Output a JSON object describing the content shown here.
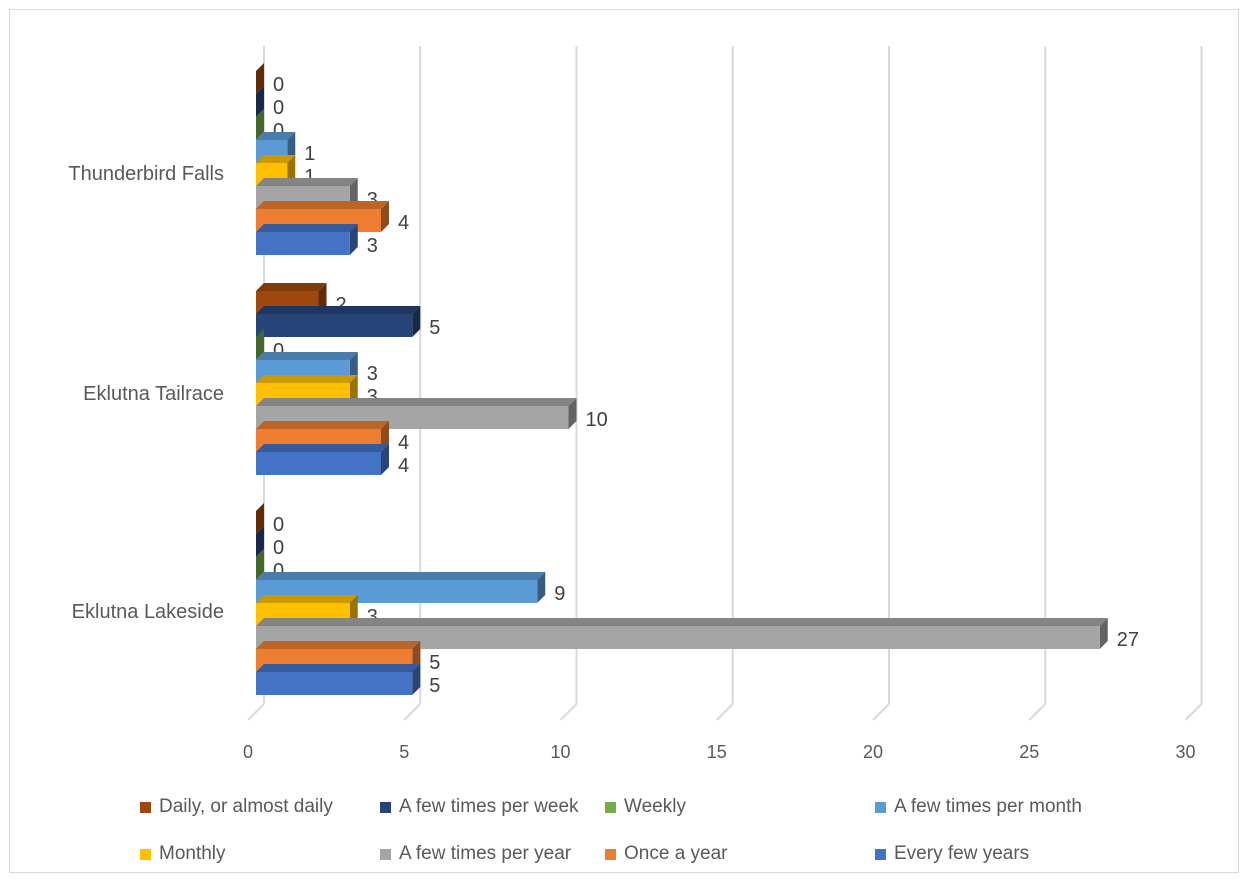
{
  "chart_data": {
    "type": "bar",
    "orientation": "horizontal",
    "style": "3d-clustered",
    "categories": [
      "Thunderbird Falls",
      "Eklutna Tailrace",
      "Eklutna Lakeside"
    ],
    "series": [
      {
        "name": "Daily, or almost daily",
        "color": "#9E480E",
        "values": [
          0,
          2,
          0
        ]
      },
      {
        "name": "A few times per week",
        "color": "#264478",
        "values": [
          0,
          5,
          0
        ]
      },
      {
        "name": "Weekly",
        "color": "#70AD47",
        "values": [
          0,
          0,
          0
        ]
      },
      {
        "name": "A few times per month",
        "color": "#5B9BD5",
        "values": [
          1,
          3,
          9
        ]
      },
      {
        "name": "Monthly",
        "color": "#FFC000",
        "values": [
          1,
          3,
          3
        ]
      },
      {
        "name": "A few times per year",
        "color": "#A5A5A5",
        "values": [
          3,
          10,
          27
        ]
      },
      {
        "name": "Once a year",
        "color": "#ED7D31",
        "values": [
          4,
          4,
          5
        ]
      },
      {
        "name": "Every few years",
        "color": "#4472C4",
        "values": [
          3,
          4,
          5
        ]
      }
    ],
    "xlim": [
      0,
      30
    ],
    "xticks": [
      "0",
      "5",
      "10",
      "15",
      "20",
      "25",
      "30"
    ],
    "grid": true,
    "legend_position": "bottom",
    "title": "",
    "xlabel": "",
    "ylabel": ""
  }
}
